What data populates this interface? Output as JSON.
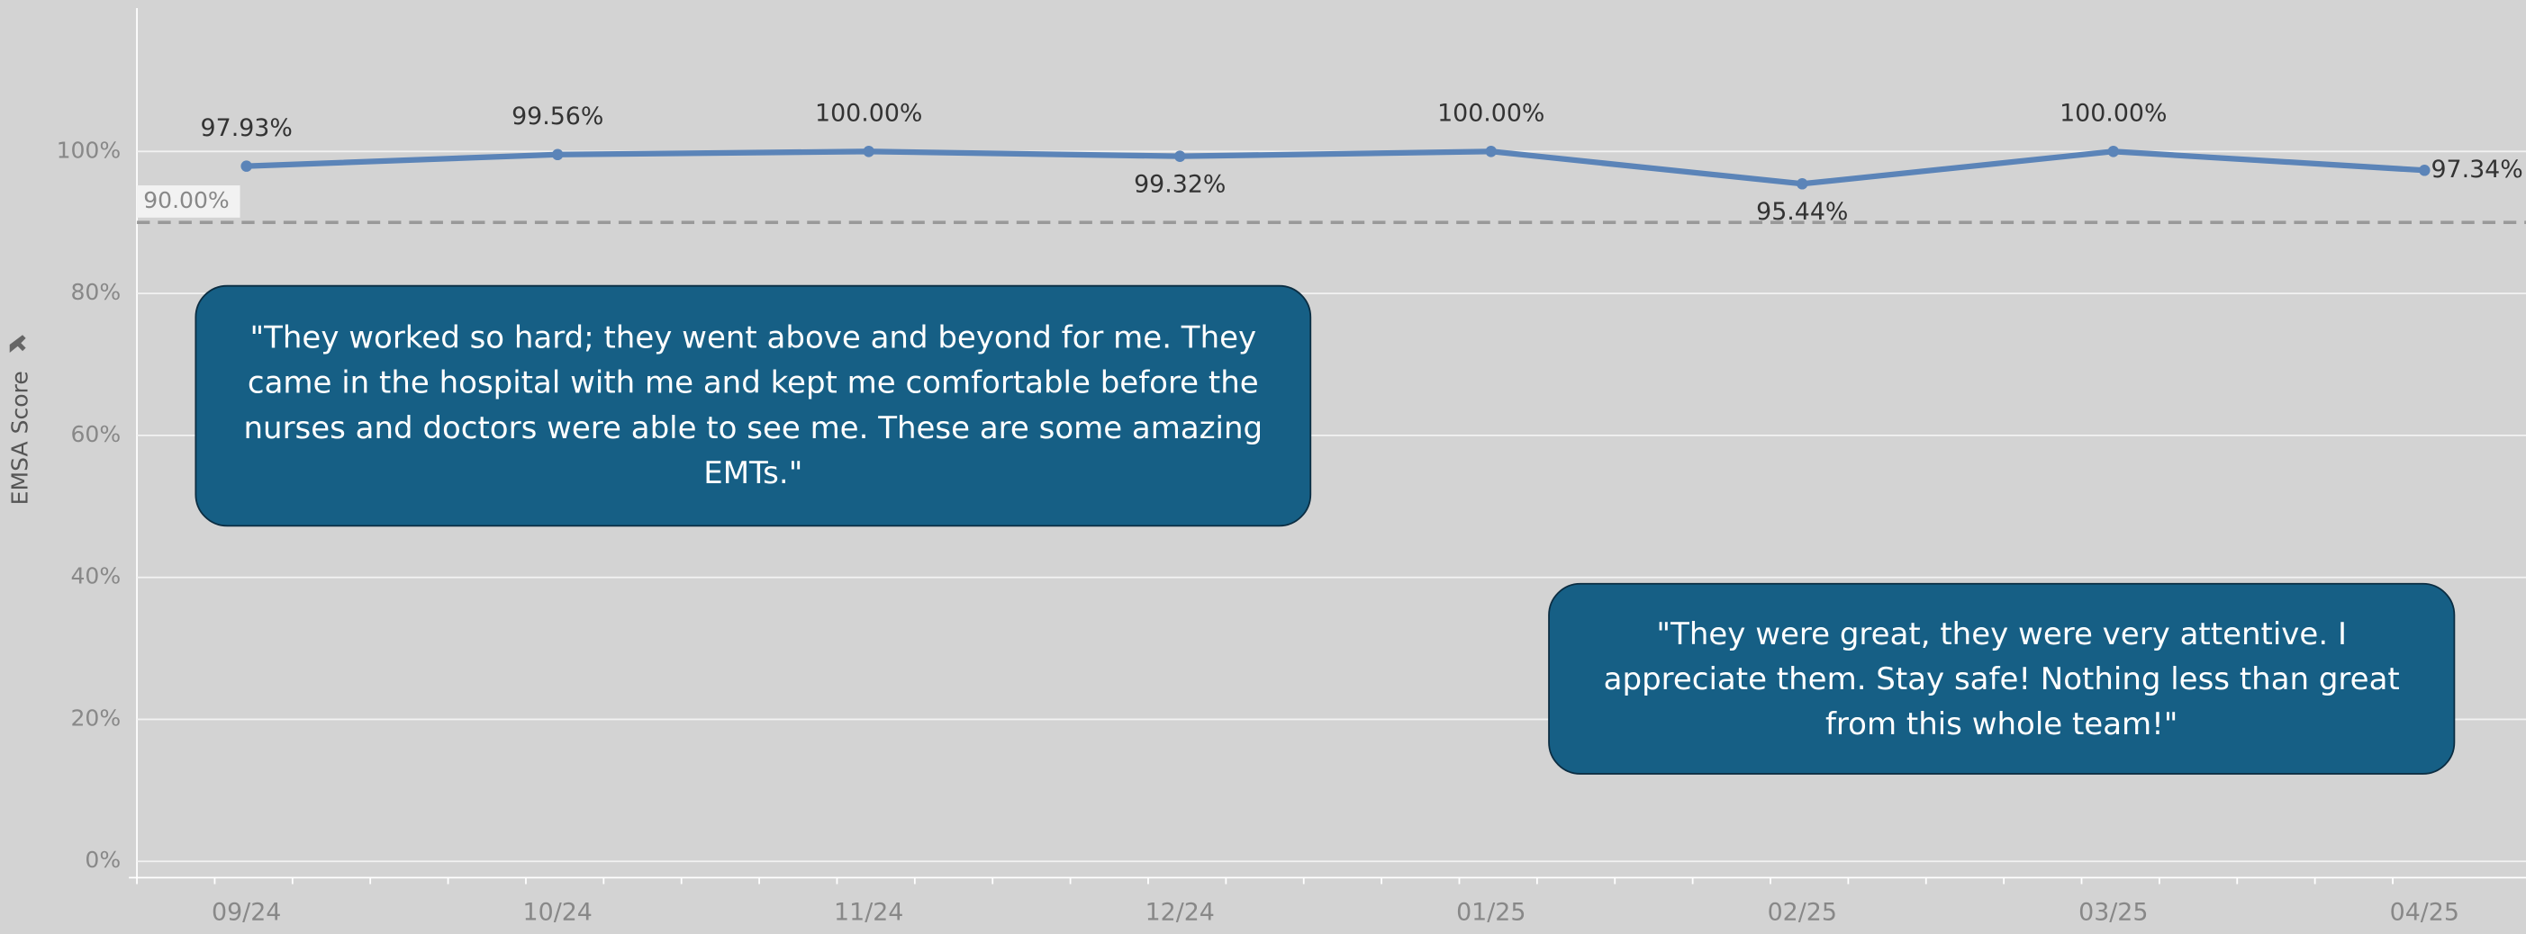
{
  "chart_data": {
    "type": "line",
    "y_label": "EMSA Score",
    "categories": [
      "09/24",
      "10/24",
      "11/24",
      "12/24",
      "01/25",
      "02/25",
      "03/25",
      "04/25"
    ],
    "values": [
      97.93,
      99.56,
      100,
      99.32,
      100,
      95.44,
      100,
      97.34
    ],
    "value_labels": [
      "97.93%",
      "99.56%",
      "100.00%",
      "99.32%",
      "100.00%",
      "95.44%",
      "100.00%",
      "97.34%"
    ],
    "color": "#5b84b8",
    "ylim": [
      -2.3,
      120.2
    ],
    "yticks": [
      {
        "value": 0,
        "label": "0%"
      },
      {
        "value": 20,
        "label": "20%"
      },
      {
        "value": 40,
        "label": "40%"
      },
      {
        "value": 60,
        "label": "60%"
      },
      {
        "value": 80,
        "label": "80%"
      },
      {
        "value": 100,
        "label": "100%"
      }
    ],
    "grid": true,
    "reference_line": {
      "value": 90,
      "label": "90.00%"
    },
    "annotations": [
      "\"They worked so hard; they went above and beyond for me. They came in the hospital with me and kept me comfortable before the nurses and doctors were able to see me. These are some amazing EMTs.\"",
      "\"They were great, they were very attentive. I appreciate them. Stay safe! Nothing less than great from this whole team!\""
    ]
  }
}
